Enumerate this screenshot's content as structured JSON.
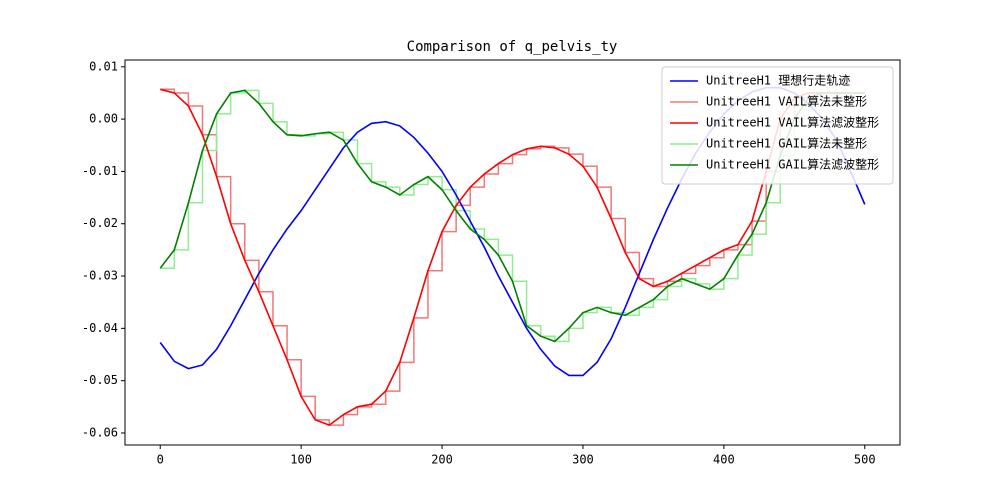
{
  "chart_data": {
    "type": "line",
    "title": "Comparison of q_pelvis_ty",
    "x": [
      0,
      10,
      20,
      30,
      40,
      50,
      60,
      70,
      80,
      90,
      100,
      110,
      120,
      130,
      140,
      150,
      160,
      170,
      180,
      190,
      200,
      210,
      220,
      230,
      240,
      250,
      260,
      270,
      280,
      290,
      300,
      310,
      320,
      330,
      340,
      350,
      360,
      370,
      380,
      390,
      400,
      410,
      420,
      430,
      440,
      450,
      460,
      470,
      480,
      490,
      500
    ],
    "series": [
      {
        "name": "UnitreeH1 理想行走轨迹",
        "color": "#0000ff",
        "step": false,
        "values": [
          -0.0427,
          -0.0463,
          -0.0477,
          -0.047,
          -0.044,
          -0.0395,
          -0.0345,
          -0.0295,
          -0.025,
          -0.021,
          -0.0175,
          -0.0135,
          -0.0095,
          -0.0055,
          -0.0025,
          -0.0008,
          -0.0005,
          -0.0013,
          -0.0035,
          -0.0065,
          -0.01,
          -0.0145,
          -0.0195,
          -0.0245,
          -0.03,
          -0.035,
          -0.04,
          -0.044,
          -0.0472,
          -0.049,
          -0.049,
          -0.0465,
          -0.042,
          -0.036,
          -0.0295,
          -0.023,
          -0.017,
          -0.0115,
          -0.0065,
          -0.0025,
          0.001,
          0.0035,
          0.0052,
          0.006,
          0.006,
          0.005,
          0.003,
          0.0,
          -0.004,
          -0.01,
          -0.0163
        ]
      },
      {
        "name": "UnitreeH1 VAIL算法未整形",
        "color": "#f07878",
        "step": true,
        "values": [
          0.0057,
          0.005,
          0.0025,
          -0.003,
          -0.011,
          -0.02,
          -0.027,
          -0.033,
          -0.0395,
          -0.046,
          -0.053,
          -0.0575,
          -0.0585,
          -0.0565,
          -0.055,
          -0.0545,
          -0.052,
          -0.0465,
          -0.038,
          -0.029,
          -0.0215,
          -0.0165,
          -0.013,
          -0.0105,
          -0.0085,
          -0.0068,
          -0.0057,
          -0.0052,
          -0.0055,
          -0.0067,
          -0.009,
          -0.013,
          -0.019,
          -0.0255,
          -0.0305,
          -0.032,
          -0.031,
          -0.0295,
          -0.028,
          -0.0265,
          -0.025,
          -0.024,
          -0.0195,
          -0.01,
          0.0,
          0.004,
          0.005,
          0.005,
          0.005,
          0.005,
          0.005
        ]
      },
      {
        "name": "UnitreeH1 VAIL算法滤波整形",
        "color": "#ff0000",
        "step": false,
        "values": [
          0.0057,
          0.005,
          0.0025,
          -0.003,
          -0.011,
          -0.02,
          -0.027,
          -0.033,
          -0.0395,
          -0.046,
          -0.053,
          -0.0575,
          -0.0585,
          -0.0565,
          -0.055,
          -0.0545,
          -0.052,
          -0.0465,
          -0.038,
          -0.029,
          -0.0215,
          -0.0165,
          -0.013,
          -0.0105,
          -0.0085,
          -0.0068,
          -0.0057,
          -0.0052,
          -0.0055,
          -0.0067,
          -0.009,
          -0.013,
          -0.019,
          -0.0255,
          -0.0305,
          -0.032,
          -0.031,
          -0.0295,
          -0.028,
          -0.0265,
          -0.025,
          -0.024,
          -0.0195,
          -0.01,
          0.0,
          0.004,
          0.005,
          0.005,
          0.005,
          0.005,
          0.005
        ]
      },
      {
        "name": "UnitreeH1 GAIL算法未整形",
        "color": "#90ee90",
        "step": true,
        "values": [
          -0.0285,
          -0.025,
          -0.016,
          -0.006,
          0.001,
          0.005,
          0.0055,
          0.003,
          -0.0005,
          -0.003,
          -0.0032,
          -0.0028,
          -0.0025,
          -0.004,
          -0.0085,
          -0.012,
          -0.013,
          -0.0145,
          -0.0125,
          -0.011,
          -0.0135,
          -0.0175,
          -0.021,
          -0.023,
          -0.026,
          -0.031,
          -0.0395,
          -0.0415,
          -0.0425,
          -0.04,
          -0.037,
          -0.036,
          -0.037,
          -0.0375,
          -0.036,
          -0.0345,
          -0.032,
          -0.0305,
          -0.0315,
          -0.0325,
          -0.0305,
          -0.026,
          -0.022,
          -0.016,
          -0.007,
          0.0,
          0.004,
          0.005,
          0.005,
          0.005,
          0.005
        ]
      },
      {
        "name": "UnitreeH1 GAIL算法滤波整形",
        "color": "#008000",
        "step": false,
        "values": [
          -0.0285,
          -0.025,
          -0.016,
          -0.006,
          0.001,
          0.005,
          0.0055,
          0.003,
          -0.0005,
          -0.003,
          -0.0032,
          -0.0028,
          -0.0025,
          -0.004,
          -0.0085,
          -0.012,
          -0.013,
          -0.0145,
          -0.0125,
          -0.011,
          -0.0135,
          -0.0175,
          -0.021,
          -0.023,
          -0.026,
          -0.031,
          -0.0395,
          -0.0415,
          -0.0425,
          -0.04,
          -0.037,
          -0.036,
          -0.037,
          -0.0375,
          -0.036,
          -0.0345,
          -0.032,
          -0.0305,
          -0.0315,
          -0.0325,
          -0.0305,
          -0.026,
          -0.022,
          -0.016,
          -0.007,
          0.0,
          0.004,
          0.005,
          0.005,
          0.005,
          0.005
        ]
      }
    ],
    "xlim": [
      -25,
      525
    ],
    "xticks": [
      0,
      100,
      200,
      300,
      400,
      500
    ],
    "ylim": [
      -0.0623,
      0.0113
    ],
    "yticks": [
      0.01,
      {
        "value": 0,
        "label": "0.00"
      },
      -0.01,
      -0.02,
      -0.03,
      -0.04,
      -0.05,
      -0.06
    ],
    "legend": "upper right"
  }
}
